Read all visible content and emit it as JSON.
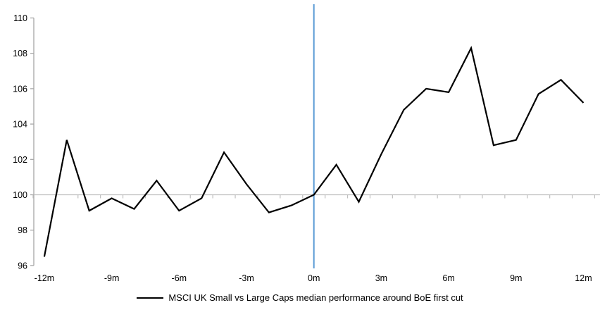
{
  "legend": {
    "label": "MSCI UK Small vs Large Caps median performance around BoE first cut",
    "marker": "line",
    "marker_color": "#000000"
  },
  "colors": {
    "series_line": "#000000",
    "event_line": "#5B9BD5",
    "baseline_gridline": "#BFBFBF",
    "axis": "#A6A6A6",
    "text": "#000000",
    "background": "#FFFFFF"
  },
  "chart_data": {
    "type": "line",
    "title": "",
    "xlabel": "",
    "ylabel": "",
    "x_unit": "months relative to BoE first cut",
    "x": [
      -12,
      -11,
      -10,
      -9,
      -8,
      -7,
      -6,
      -5,
      -4,
      -3,
      -2,
      -1,
      0,
      1,
      2,
      3,
      4,
      5,
      6,
      7,
      8,
      9,
      10,
      11,
      12
    ],
    "series": [
      {
        "name": "MSCI UK Small vs Large Caps median performance around BoE first cut",
        "color": "#000000",
        "values": [
          96.5,
          103.1,
          99.1,
          99.8,
          99.2,
          100.8,
          99.1,
          99.8,
          102.4,
          100.6,
          99.0,
          99.4,
          100.0,
          101.7,
          99.6,
          102.3,
          104.8,
          106.0,
          105.8,
          108.3,
          102.8,
          103.1,
          105.7,
          106.5,
          105.2
        ]
      }
    ],
    "xlim": [
      -12,
      12
    ],
    "ylim": [
      96,
      110
    ],
    "y_ticks": [
      96,
      98,
      100,
      102,
      104,
      106,
      108,
      110
    ],
    "x_tick_months": [
      -12,
      -9,
      -6,
      -3,
      0,
      3,
      6,
      9,
      12
    ],
    "x_tick_labels": [
      "-12m",
      "-9m",
      "-6m",
      "-3m",
      "0m",
      "3m",
      "6m",
      "9m",
      "12m"
    ],
    "baseline_value": 100,
    "event_line_x": 0,
    "grid": "single horizontal gray line at y=100 with small category tick marks",
    "legend_position": "bottom-center"
  }
}
